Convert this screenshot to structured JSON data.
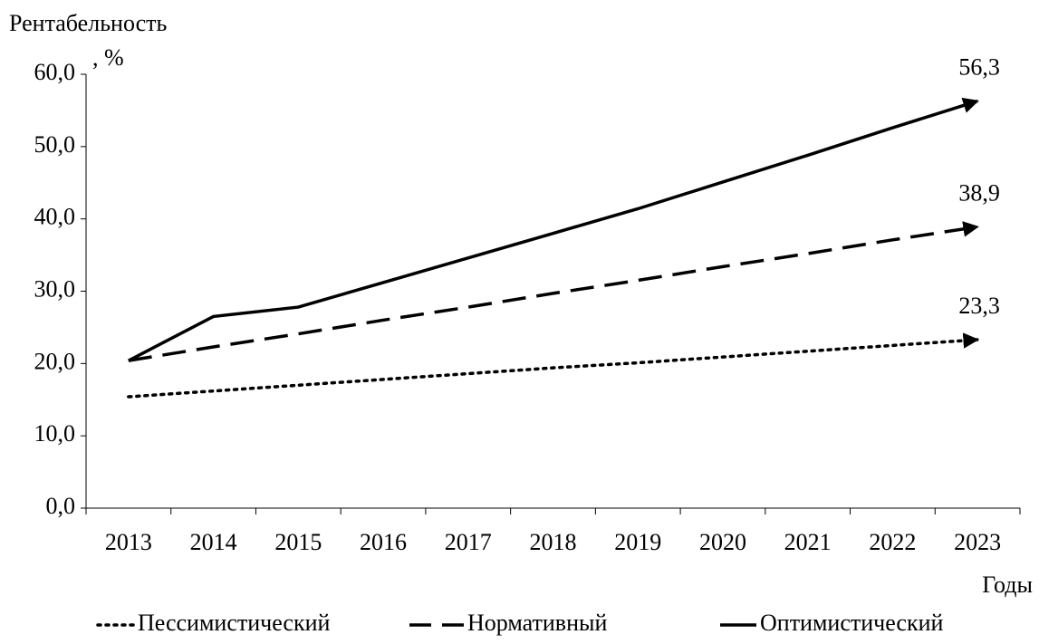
{
  "chart_data": {
    "type": "line",
    "ylabel": [
      "Рентабельность",
      ", %"
    ],
    "xlabel": "Годы",
    "categories": [
      "2013",
      "2014",
      "2015",
      "2016",
      "2017",
      "2018",
      "2019",
      "2020",
      "2021",
      "2022",
      "2023"
    ],
    "series": [
      {
        "name": "Пессимистический",
        "color": "#000000",
        "dash": "dotted",
        "values": [
          15.4,
          16.2,
          17.0,
          17.8,
          18.6,
          19.4,
          20.1,
          20.9,
          21.7,
          22.5,
          23.3
        ],
        "value_labels": [
          null,
          null,
          null,
          null,
          null,
          null,
          null,
          null,
          null,
          null,
          "23,3"
        ]
      },
      {
        "name": "Нормативный",
        "color": "#000000",
        "dash": "dashed",
        "values": [
          20.4,
          22.3,
          24.1,
          26.0,
          27.8,
          29.7,
          31.5,
          33.4,
          35.2,
          37.1,
          38.9
        ],
        "value_labels": [
          null,
          null,
          null,
          null,
          null,
          null,
          null,
          null,
          null,
          null,
          "38,9"
        ]
      },
      {
        "name": "Оптимистический",
        "color": "#000000",
        "dash": "solid",
        "values": [
          20.4,
          26.5,
          27.8,
          31.2,
          34.6,
          38.0,
          41.4,
          45.1,
          48.8,
          52.6,
          56.3
        ],
        "value_labels": [
          null,
          null,
          null,
          null,
          null,
          null,
          null,
          null,
          null,
          null,
          "56,3"
        ]
      }
    ],
    "ylim": [
      0,
      60
    ],
    "yticks": [
      {
        "value": 0,
        "label": "0,0"
      },
      {
        "value": 10,
        "label": "10,0"
      },
      {
        "value": 20,
        "label": "20,0"
      },
      {
        "value": 30,
        "label": "30,0"
      },
      {
        "value": 40,
        "label": "40,0"
      },
      {
        "value": 50,
        "label": "50,0"
      },
      {
        "value": 60,
        "label": "60,0"
      }
    ],
    "grid": false,
    "legend": "bottom"
  }
}
